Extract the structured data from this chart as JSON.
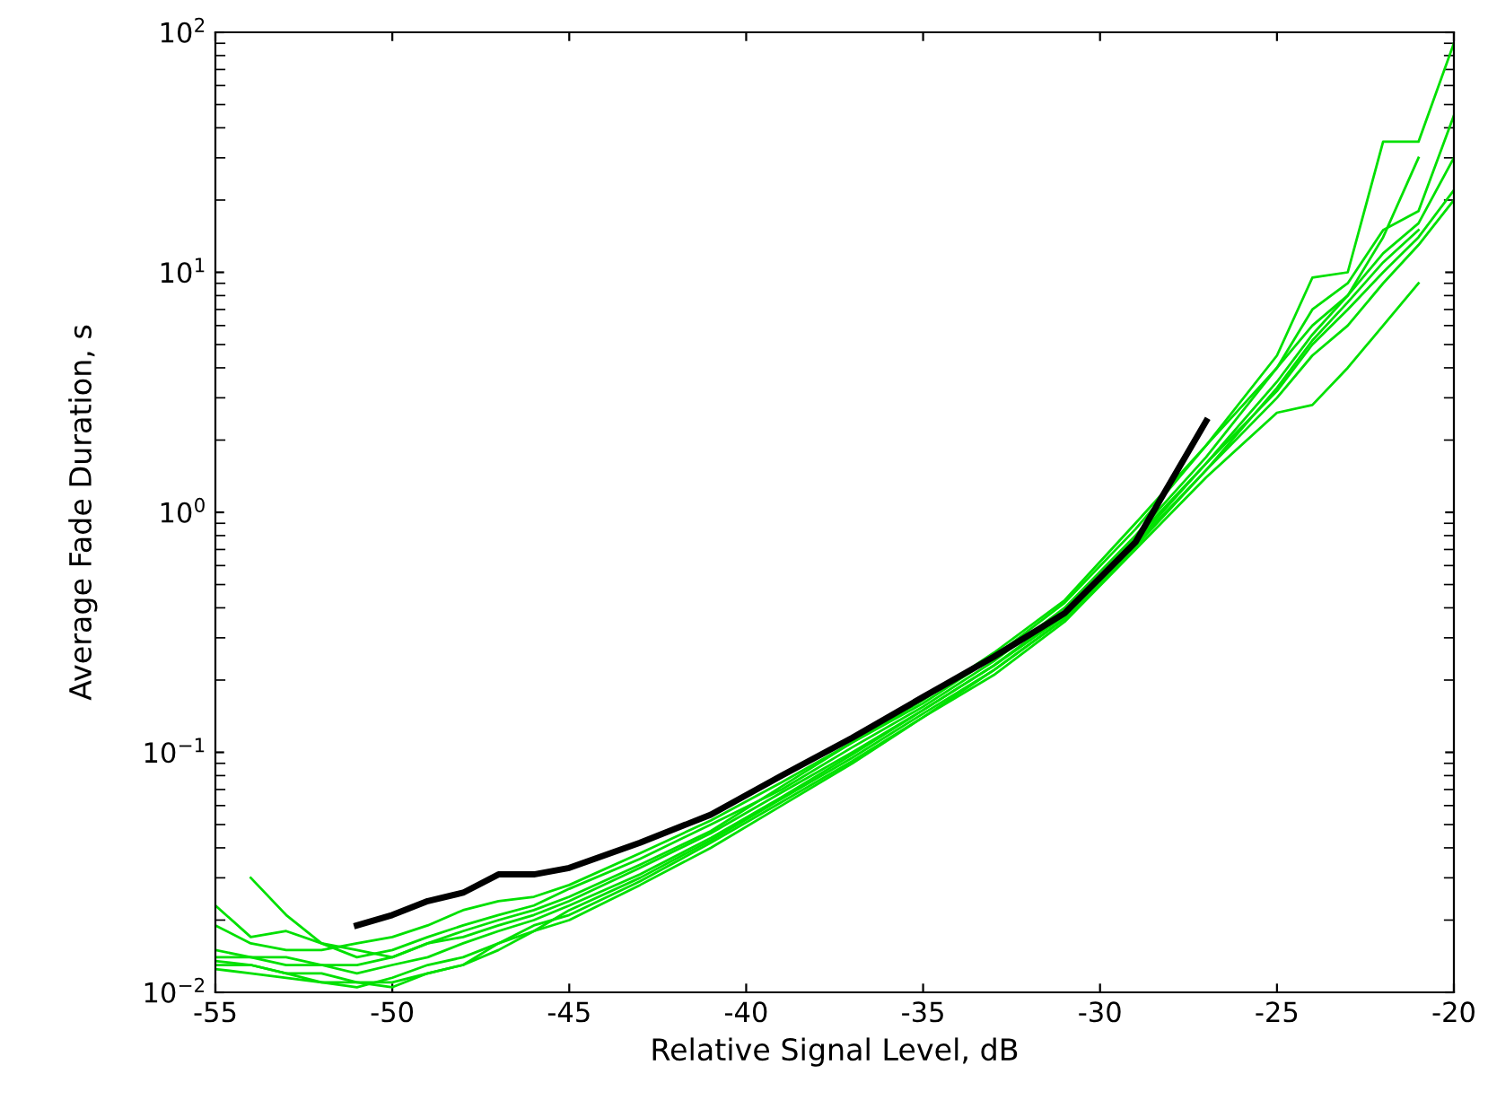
{
  "chart_data": {
    "type": "line",
    "xlabel": "Relative Signal Level, dB",
    "ylabel": "Average Fade Duration, s",
    "log": "y",
    "xlim": [
      -55,
      -20
    ],
    "xticks": [
      -55,
      -50,
      -45,
      -40,
      -35,
      -30,
      -25,
      -20
    ],
    "ylim": [
      0.01,
      100
    ],
    "yticks": [
      {
        "value": 0.01,
        "label": "10$^{−2}$"
      },
      {
        "value": 0.1,
        "label": "10$^{−1}$"
      },
      {
        "value": 1,
        "label": "10$^{0}$"
      },
      {
        "value": 10,
        "label": "10$^{1}$"
      },
      {
        "value": 100,
        "label": "10$^{2}$"
      }
    ],
    "grid": false,
    "marker": "none",
    "line_style": "solid",
    "x": [
      -55,
      -54,
      -53,
      -52,
      -51,
      -50,
      -49,
      -48,
      -47,
      -46,
      -45,
      -43,
      -41,
      -39,
      -37,
      -35,
      -33,
      -31,
      -29,
      -27,
      -25,
      -24,
      -23,
      -22,
      -21,
      -20
    ],
    "series": [
      {
        "color": "#00e000",
        "values": [
          0.023,
          0.017,
          0.018,
          0.016,
          0.015,
          0.014,
          0.016,
          0.018,
          0.02,
          0.022,
          0.025,
          0.034,
          0.047,
          0.072,
          0.11,
          0.16,
          0.25,
          0.42,
          0.85,
          1.9,
          4.5,
          9.5,
          10,
          35,
          35,
          90
        ]
      },
      {
        "color": "#00e000",
        "values": [
          null,
          0.03,
          0.021,
          0.016,
          0.014,
          0.015,
          0.017,
          0.019,
          0.021,
          0.023,
          0.027,
          0.036,
          0.05,
          0.07,
          0.105,
          0.155,
          0.24,
          0.4,
          0.8,
          1.7,
          4,
          7,
          9,
          15,
          18,
          45
        ]
      },
      {
        "color": "#00e000",
        "values": [
          0.019,
          0.016,
          0.015,
          0.015,
          0.016,
          0.017,
          0.019,
          0.022,
          0.024,
          0.025,
          0.028,
          0.038,
          0.052,
          0.075,
          0.11,
          0.165,
          0.26,
          0.43,
          0.9,
          1.9,
          4,
          6,
          8,
          14,
          30,
          null
        ]
      },
      {
        "color": "#00e000",
        "values": [
          0.015,
          0.014,
          0.014,
          0.013,
          0.013,
          0.014,
          0.016,
          0.017,
          0.019,
          0.021,
          0.024,
          0.033,
          0.046,
          0.068,
          0.1,
          0.15,
          0.23,
          0.38,
          0.78,
          1.6,
          3.5,
          5.5,
          8,
          12,
          16,
          30
        ]
      },
      {
        "color": "#00e000",
        "values": [
          0.014,
          0.014,
          0.013,
          0.013,
          0.012,
          0.013,
          0.014,
          0.016,
          0.018,
          0.02,
          0.023,
          0.031,
          0.044,
          0.065,
          0.098,
          0.15,
          0.23,
          0.37,
          0.75,
          1.6,
          3.2,
          5,
          7,
          10,
          14,
          22
        ]
      },
      {
        "color": "#00e000",
        "values": [
          0.0135,
          0.013,
          0.012,
          0.012,
          0.011,
          0.011,
          0.012,
          0.013,
          0.015,
          0.018,
          0.022,
          0.03,
          0.043,
          0.064,
          0.095,
          0.145,
          0.22,
          0.36,
          0.72,
          1.5,
          3,
          4.5,
          6,
          9,
          13,
          20
        ]
      },
      {
        "color": "#00e000",
        "values": [
          0.013,
          0.013,
          0.012,
          0.011,
          0.011,
          0.0105,
          0.012,
          0.013,
          0.016,
          0.019,
          0.021,
          0.029,
          0.042,
          0.062,
          0.092,
          0.14,
          0.21,
          0.35,
          0.7,
          1.4,
          2.6,
          2.8,
          4,
          6,
          9,
          null
        ]
      },
      {
        "color": "#00e000",
        "values": [
          0.0125,
          0.012,
          0.0115,
          0.011,
          0.0105,
          0.0115,
          0.013,
          0.014,
          0.016,
          0.018,
          0.02,
          0.028,
          0.04,
          0.06,
          0.09,
          0.14,
          0.22,
          0.36,
          0.74,
          1.5,
          3.3,
          5.2,
          7.5,
          11,
          15,
          null
        ]
      },
      {
        "color": "#000000",
        "values": [
          null,
          null,
          null,
          null,
          0.019,
          0.021,
          0.024,
          0.026,
          0.031,
          0.031,
          0.033,
          0.042,
          0.055,
          0.08,
          0.115,
          0.17,
          0.25,
          0.38,
          0.75,
          2.4,
          null,
          null,
          null,
          null,
          null,
          null
        ]
      }
    ]
  }
}
